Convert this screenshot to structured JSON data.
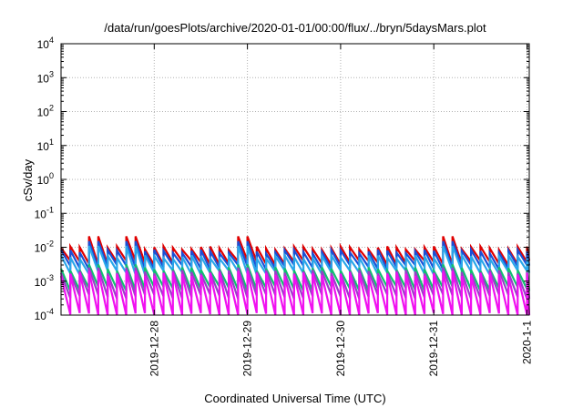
{
  "chart_data": {
    "type": "line",
    "title": "/data/run/goesPlots/archive/2020-01-01/00:00/flux/../bryn/5daysMars.plot",
    "xlabel": "Coordinated Universal Time (UTC)",
    "ylabel": "cSv/day",
    "y_scale": "log",
    "ylim": [
      0.0001,
      10000
    ],
    "y_ticks": [
      {
        "base": "10",
        "exp": "-4"
      },
      {
        "base": "10",
        "exp": "-3"
      },
      {
        "base": "10",
        "exp": "-2"
      },
      {
        "base": "10",
        "exp": "-1"
      },
      {
        "base": "10",
        "exp": "0"
      },
      {
        "base": "10",
        "exp": "1"
      },
      {
        "base": "10",
        "exp": "2"
      },
      {
        "base": "10",
        "exp": "3"
      },
      {
        "base": "10",
        "exp": "4"
      }
    ],
    "xlim": [
      "2019-12-27 00:00",
      "2020-01-01 00:35"
    ],
    "x_ticks": [
      "2019-12-28",
      "2019-12-29",
      "2019-12-30",
      "2019-12-31",
      "2020-1-1"
    ],
    "grid": true,
    "period_hours": 2.4,
    "series": [
      {
        "color": "#e00000",
        "peak": 0.0095,
        "min": 0.0035,
        "boost_peak": 0.021
      },
      {
        "color": "#1a4fd6",
        "peak": 0.0075,
        "min": 0.0026,
        "boost_peak": 0.015
      },
      {
        "color": "#2aa7ea",
        "peak": 0.0052,
        "min": 0.0018,
        "boost_peak": 0.011
      },
      {
        "color": "#10c070",
        "peak": 0.0023,
        "min": 0.0006,
        "boost_peak": 0.0031
      },
      {
        "color": "#9a3ec8",
        "peak": 0.0019,
        "min": 0.00035,
        "boost_peak": 0.0025
      },
      {
        "color": "#f010f0",
        "peak": 0.0016,
        "min": 0.0001,
        "boost_peak": 0.002
      }
    ]
  }
}
